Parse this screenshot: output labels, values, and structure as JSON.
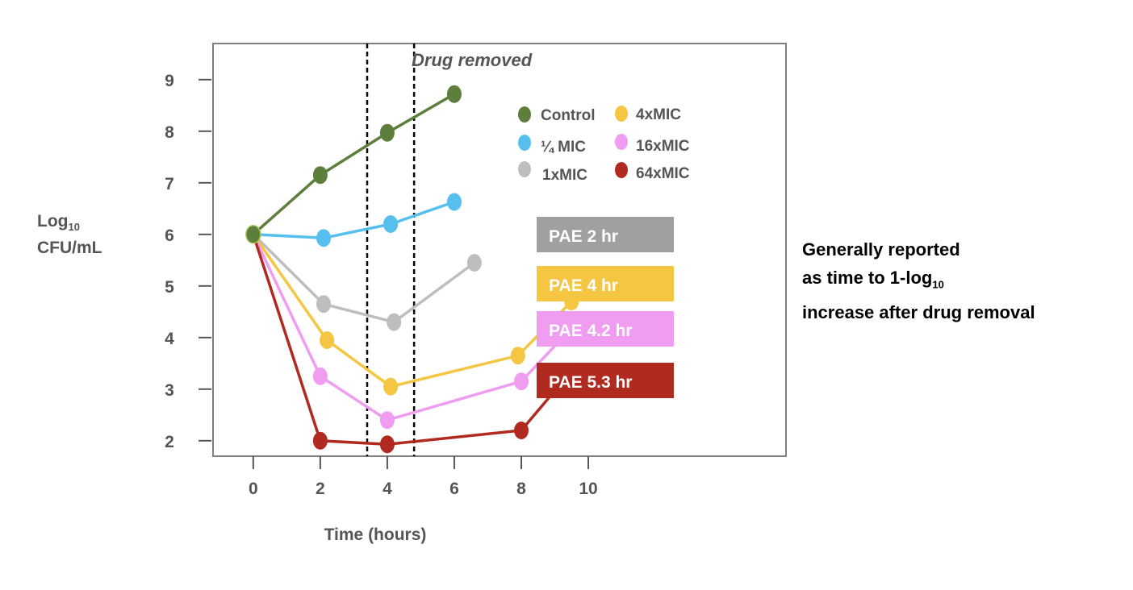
{
  "chart_data": {
    "type": "line",
    "xlabel": "Time (hours)",
    "ylabel_main": "Log",
    "ylabel_sub": "10",
    "ylabel_line2": "CFU/mL",
    "x_ticks": [
      0,
      2,
      4,
      6,
      8,
      10
    ],
    "y_ticks": [
      2,
      3,
      4,
      5,
      6,
      7,
      8,
      9
    ],
    "xlim": [
      -1.2,
      15.9
    ],
    "ylim": [
      1.7,
      9.7
    ],
    "annotation": "Drug removed",
    "drug_removal_lines": [
      3.4,
      4.8
    ],
    "legend_position": "top-right",
    "series": [
      {
        "name": "Control",
        "color": "#5d7e3c",
        "x": [
          0,
          2,
          4,
          6
        ],
        "y": [
          6.0,
          7.15,
          7.97,
          8.72
        ]
      },
      {
        "name": "¼ MIC",
        "color": "#56bfee",
        "x": [
          0,
          2.1,
          4.1,
          6
        ],
        "y": [
          6.0,
          5.93,
          6.2,
          6.63
        ]
      },
      {
        "name": "1xMIC",
        "color": "#bebebe",
        "x": [
          0,
          2.1,
          4.2,
          6.6
        ],
        "y": [
          6.0,
          4.65,
          4.3,
          5.45
        ]
      },
      {
        "name": "4xMIC",
        "color": "#f4c642",
        "x": [
          0,
          2.2,
          4.1,
          7.9,
          9.5
        ],
        "y": [
          6.0,
          3.95,
          3.05,
          3.65,
          4.7
        ]
      },
      {
        "name": "16xMIC",
        "color": "#f09cf0",
        "x": [
          0,
          2.0,
          4.0,
          8.0,
          9.6
        ],
        "y": [
          6.0,
          3.25,
          2.4,
          3.15,
          4.25
        ]
      },
      {
        "name": "64xMIC",
        "color": "#b02a20",
        "x": [
          0,
          2.0,
          4.0,
          8.0,
          9.3
        ],
        "y": [
          6.0,
          2.0,
          1.93,
          2.2,
          3.2
        ]
      }
    ],
    "pae_labels": [
      {
        "text": "PAE 2 hr",
        "color": "#a0a0a0"
      },
      {
        "text": "PAE 4 hr",
        "color": "#f4c642"
      },
      {
        "text": "PAE 4.2 hr",
        "color": "#f09cf0"
      },
      {
        "text": "PAE 5.3 hr",
        "color": "#b02a20"
      }
    ]
  },
  "side_note": {
    "line1": "Generally reported",
    "line2_main": "as time to 1-log",
    "line2_sub": "10",
    "line3": "increase after drug removal"
  }
}
